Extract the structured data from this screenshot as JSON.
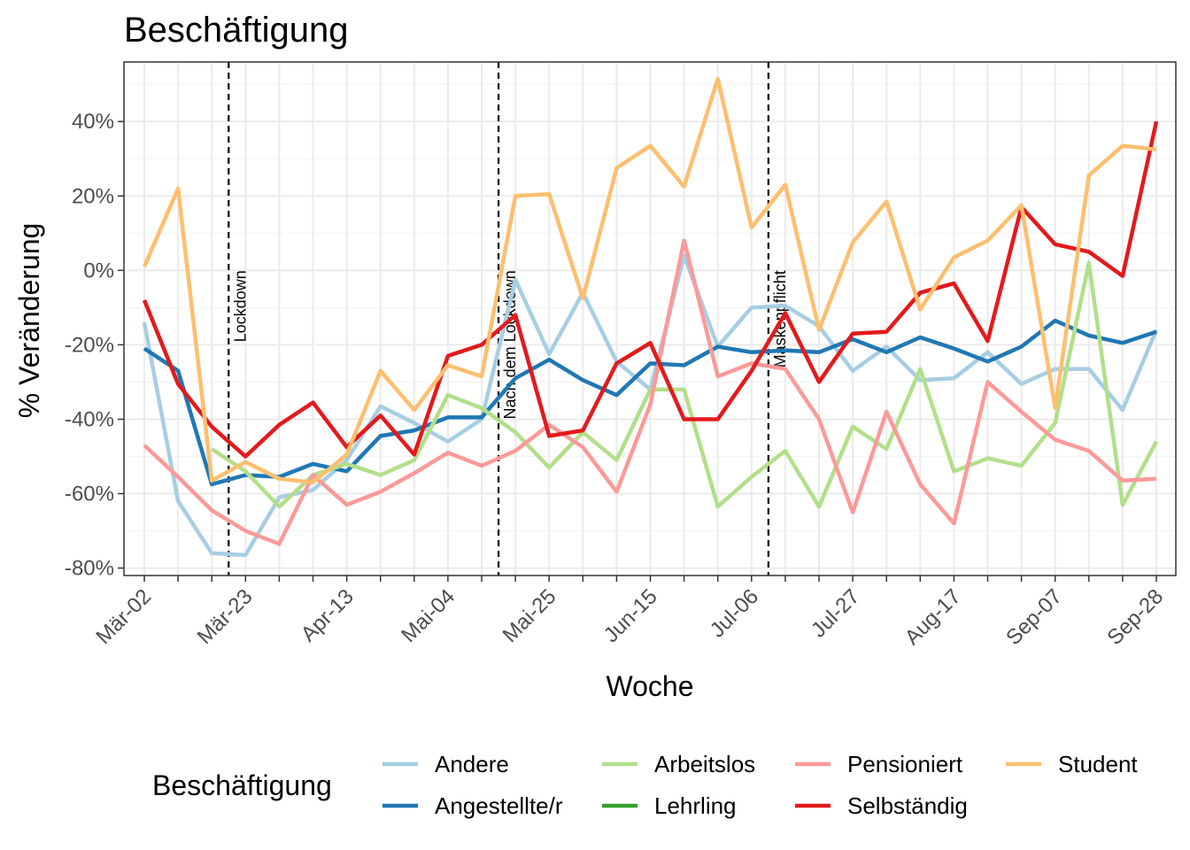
{
  "chart_data": {
    "type": "line",
    "title": "Beschäftigung",
    "xlabel": "Woche",
    "ylabel": "% Veränderung",
    "x_weeks": [
      "Mär-02",
      "Mär-09",
      "Mär-16",
      "Mär-23",
      "Mär-30",
      "Apr-06",
      "Apr-13",
      "Apr-20",
      "Apr-27",
      "Mai-04",
      "Mai-11",
      "Mai-18",
      "Mai-25",
      "Jun-01",
      "Jun-08",
      "Jun-15",
      "Jun-22",
      "Jun-29",
      "Jul-06",
      "Jul-13",
      "Jul-20",
      "Jul-27",
      "Aug-03",
      "Aug-10",
      "Aug-17",
      "Aug-24",
      "Aug-31",
      "Sep-07",
      "Sep-14",
      "Sep-21",
      "Sep-28"
    ],
    "x_tick_labels": [
      "Mär-02",
      "Mär-23",
      "Apr-13",
      "Mai-04",
      "Mai-25",
      "Jun-15",
      "Jul-06",
      "Jul-27",
      "Aug-17",
      "Sep-07",
      "Sep-28"
    ],
    "y_ticks": [
      -80,
      -60,
      -40,
      -20,
      0,
      20,
      40
    ],
    "y_tick_labels": [
      "-80%",
      "-60%",
      "-40%",
      "-20%",
      "0%",
      "20%",
      "40%"
    ],
    "ylim": [
      -82,
      56
    ],
    "grid": true,
    "events": [
      {
        "label": "Lockdown",
        "week": "Mär-16"
      },
      {
        "label": "Nach dem Lockdown",
        "week": "Mai-11"
      },
      {
        "label": "Maskenpflicht",
        "week": "Jul-06"
      }
    ],
    "legend": {
      "title": "Beschäftigung",
      "position": "bottom"
    },
    "series": [
      {
        "name": "Andere",
        "color": "#a6cee3",
        "start": 0,
        "values": [
          -14,
          -62,
          -76,
          -76.5,
          -61,
          -59,
          -51,
          -36.5,
          -41,
          -46,
          -40,
          -2.5,
          -22.5,
          -6,
          -24.5,
          -32,
          4,
          -20.5,
          -10,
          -9.5,
          -15,
          -27,
          -20.5,
          -29.5,
          -29,
          -22,
          -30.5,
          -26.5,
          -26.5,
          -37.5,
          -16
        ]
      },
      {
        "name": "Angestellte/r",
        "color": "#1f78b4",
        "start": 0,
        "values": [
          -21,
          -27,
          -57.5,
          -55,
          -55.5,
          -52,
          -54,
          -44.5,
          -43,
          -39.5,
          -39.5,
          -29,
          -24,
          -29.5,
          -33.5,
          -25,
          -25.5,
          -20.5,
          -22,
          -21.5,
          -22,
          -18.5,
          -22,
          -18,
          -21,
          -24.5,
          -20.5,
          -13.5,
          -17.5,
          -19.5,
          -16.5
        ]
      },
      {
        "name": "Arbeitslos",
        "color": "#b2df8a",
        "start": 2,
        "values": [
          -48,
          -54,
          -63.5,
          -55,
          -52,
          -55,
          -51,
          -33.5,
          -37,
          -43.5,
          -53,
          -43.5,
          -51,
          -32,
          -32,
          -63.5,
          -55.5,
          -48.5,
          -63.5,
          -42,
          -48,
          -26.5,
          -54,
          -50.5,
          -52.5,
          -41,
          2,
          -63,
          -46
        ]
      },
      {
        "name": "Lehrling",
        "color": "#33a02c",
        "start": 0,
        "values": []
      },
      {
        "name": "Pensioniert",
        "color": "#fb9a99",
        "start": 0,
        "values": [
          -47,
          -55.5,
          -64.5,
          -70,
          -73.5,
          -55,
          -63,
          -59.5,
          -54.5,
          -49,
          -52.5,
          -48.5,
          -41.5,
          -47.5,
          -59.5,
          -36,
          8,
          -28.5,
          -25,
          -26.5,
          -40,
          -65,
          -38,
          -57.5,
          -68,
          -30,
          -38,
          -45.5,
          -48.5,
          -56.5,
          -56
        ]
      },
      {
        "name": "Selbständig",
        "color": "#e31a1c",
        "start": 0,
        "values": [
          -8,
          -30.5,
          -42,
          -50,
          -41.5,
          -35.5,
          -47.5,
          -39,
          -49.5,
          -23,
          -20,
          -12,
          -44.5,
          -43,
          -25,
          -19.5,
          -40,
          -40,
          -27,
          -11.5,
          -30,
          -17,
          -16.5,
          -6,
          -3.5,
          -19,
          17,
          7,
          5,
          -1.5,
          40
        ]
      },
      {
        "name": "Student",
        "color": "#fdbf6f",
        "start": 0,
        "values": [
          1,
          22,
          -56.5,
          -51.5,
          -56,
          -57,
          -49.5,
          -27,
          -37.5,
          -25.5,
          -28.5,
          20,
          20.5,
          -7.5,
          27.5,
          33.5,
          22.5,
          51.5,
          11.5,
          23,
          -16,
          7.5,
          18.5,
          -10.5,
          3.5,
          8,
          17.5,
          -37,
          25.5,
          33.5,
          32.5
        ]
      }
    ]
  }
}
